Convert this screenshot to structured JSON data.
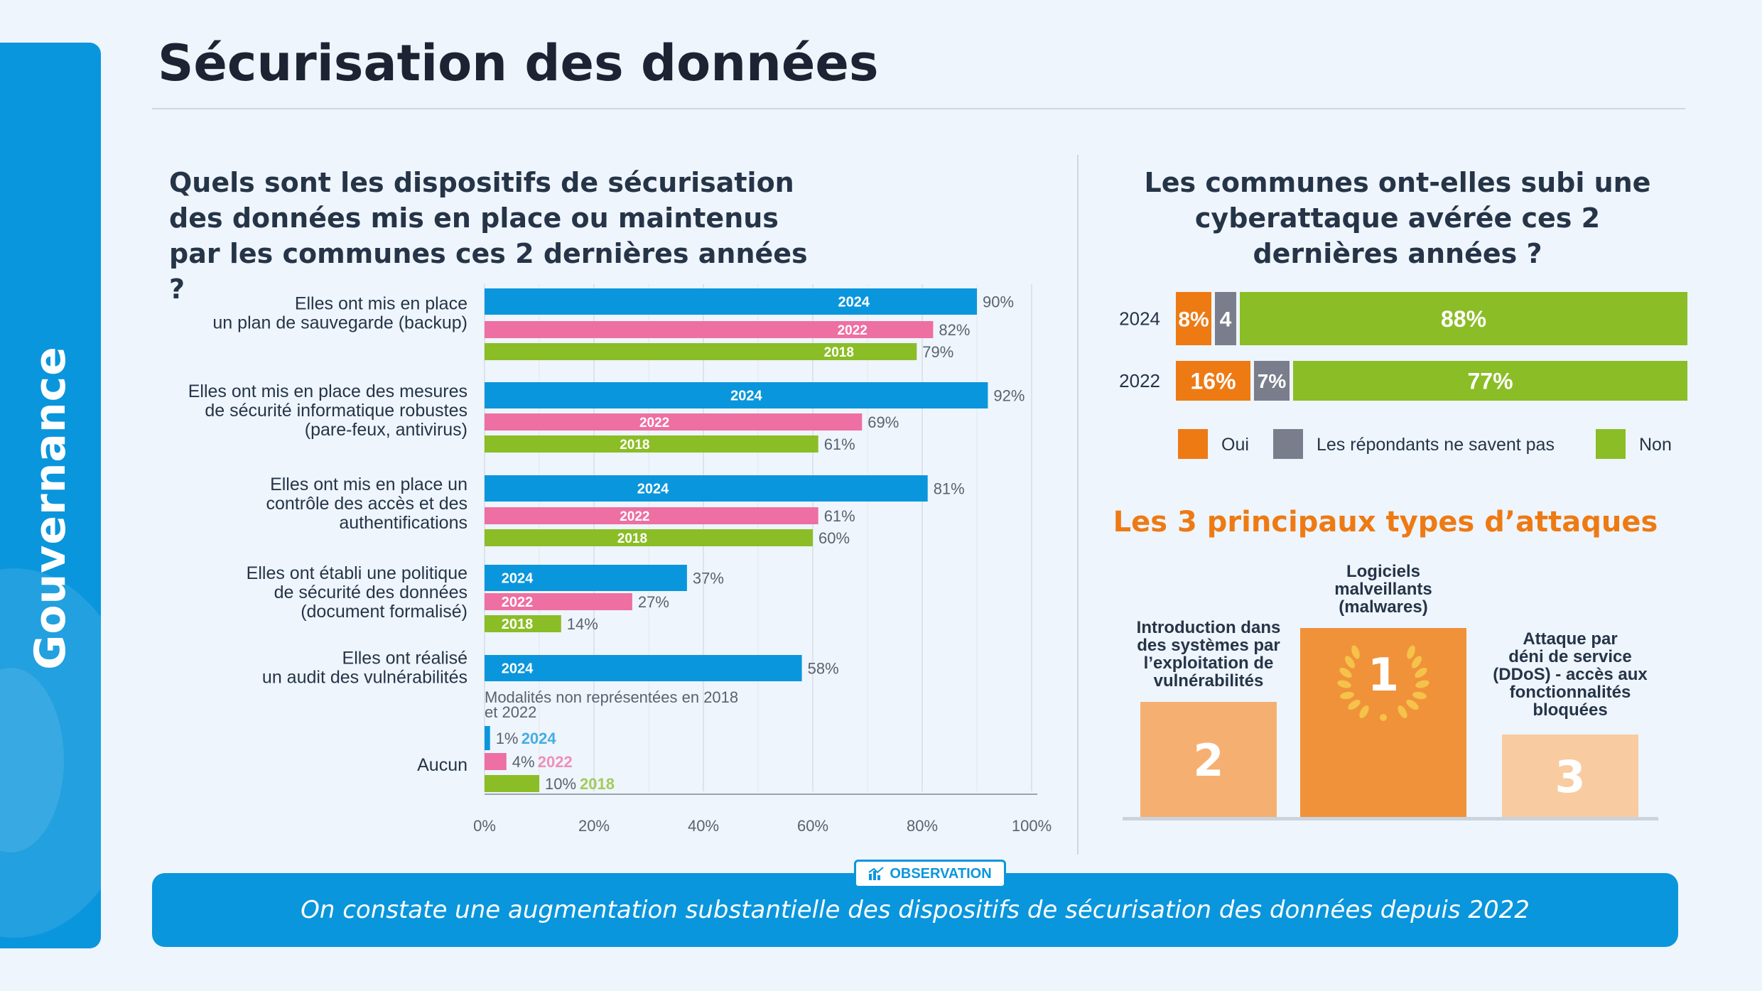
{
  "sidebar": {
    "label": "Gouvernance"
  },
  "page_title": "Sécurisation des données",
  "colors": {
    "c2024": "#0a96dc",
    "c2022": "#ee6fa2",
    "c2018": "#8bbd26",
    "oui": "#ee7a14",
    "nsp": "#7a7e8c",
    "non": "#8bbd26",
    "accent": "#ee7a14"
  },
  "question_left": "Quels sont les dispositifs de sécurisation des données mis en place ou maintenus par les communes ces 2 dernières années ?",
  "question_right": "Les communes ont-elles subi une cyberattaque avérée ces 2 dernières années ?",
  "chart_data": [
    {
      "type": "bar",
      "orientation": "horizontal",
      "categories": [
        "Elles ont mis en place\nun plan de sauvegarde (backup)",
        "Elles ont mis en place des mesures\nde sécurité informatique robustes\n(pare-feux, antivirus)",
        "Elles ont mis en place un\ncontrôle des accès et des\nauthentifications",
        "Elles ont établi une politique\nde sécurité des données\n(document formalisé)",
        "Elles ont réalisé\nun audit des vulnérabilités",
        "Aucun"
      ],
      "series": [
        {
          "name": "2024",
          "values": [
            90,
            92,
            81,
            37,
            58,
            1
          ]
        },
        {
          "name": "2022",
          "values": [
            82,
            69,
            61,
            27,
            null,
            4
          ]
        },
        {
          "name": "2018",
          "values": [
            79,
            61,
            60,
            14,
            null,
            10
          ]
        }
      ],
      "value_labels": [
        [
          "90%",
          "82%",
          "79%"
        ],
        [
          "92%",
          "69%",
          "61%"
        ],
        [
          "81%",
          "61%",
          "60%"
        ],
        [
          "37%",
          "27%",
          "14%"
        ],
        [
          "58%"
        ],
        [
          "1%",
          "4%",
          "10%"
        ]
      ],
      "note": "Modalités non représentées en 2018 et 2022",
      "xlim": [
        0,
        100
      ],
      "xticks": [
        "0%",
        "20%",
        "40%",
        "60%",
        "80%",
        "100%"
      ],
      "grid": true
    },
    {
      "type": "bar",
      "orientation": "horizontal",
      "stacked": true,
      "categories": [
        "2024",
        "2022"
      ],
      "series": [
        {
          "name": "Oui",
          "values": [
            8,
            16
          ],
          "labels": [
            "8%",
            "16%"
          ]
        },
        {
          "name": "Les répondants ne savent pas",
          "values": [
            4,
            7
          ],
          "labels": [
            "4",
            "7%"
          ]
        },
        {
          "name": "Non",
          "values": [
            88,
            77
          ],
          "labels": [
            "88%",
            "77%"
          ]
        }
      ],
      "legend": [
        "Oui",
        "Les répondants ne savent pas",
        "Non"
      ],
      "legend_position": "bottom"
    }
  ],
  "attacks": {
    "title": "Les 3 principaux types d’attaques",
    "items": [
      {
        "rank": "1",
        "label": "Logiciels\nmalveillants\n(malwares)"
      },
      {
        "rank": "2",
        "label": "Introduction dans\ndes systèmes par\nl’exploitation de\nvulnérabilités"
      },
      {
        "rank": "3",
        "label": "Attaque par\ndéni de service\n(DDoS) - accès aux\nfonctionnalités\nbloquées"
      }
    ]
  },
  "observation": {
    "badge": "OBSERVATION",
    "text": "On constate une augmentation substantielle des dispositifs de sécurisation des données depuis 2022"
  }
}
